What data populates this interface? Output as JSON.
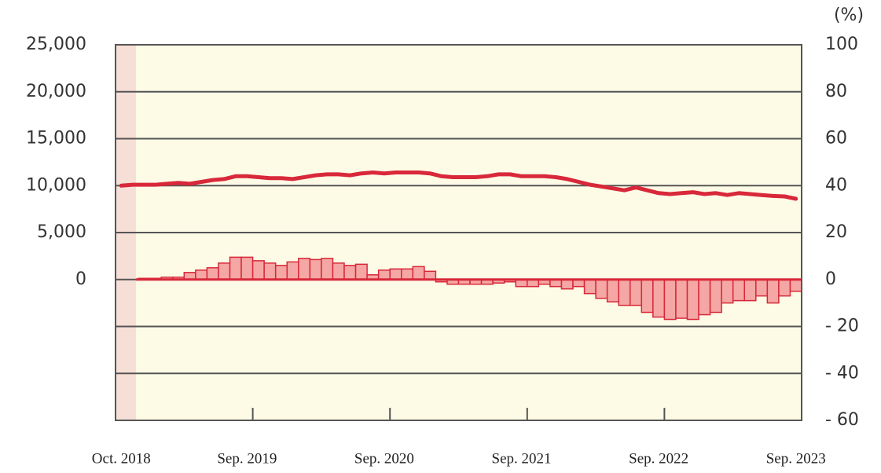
{
  "chart_data": {
    "type": "combo",
    "y2_label": "(%)",
    "categories": [
      "Oct. 2018",
      null,
      null,
      null,
      null,
      null,
      null,
      null,
      null,
      null,
      null,
      "Sep. 2019",
      null,
      null,
      null,
      null,
      null,
      null,
      null,
      null,
      null,
      null,
      null,
      "Sep. 2020",
      null,
      null,
      null,
      null,
      null,
      null,
      null,
      null,
      null,
      null,
      null,
      "Sep. 2021",
      null,
      null,
      null,
      null,
      null,
      null,
      null,
      null,
      null,
      null,
      null,
      "Sep. 2022",
      null,
      null,
      null,
      null,
      null,
      null,
      null,
      null,
      null,
      null,
      null,
      "Sep. 2023"
    ],
    "ylim": [
      -15000,
      25000
    ],
    "yticks": [
      0,
      {
        "value": 5000,
        "label": "5,000"
      },
      {
        "value": 10000,
        "label": "10,000"
      },
      {
        "value": 15000,
        "label": "15,000"
      },
      {
        "value": 20000,
        "label": "20,000"
      },
      {
        "value": 25000,
        "label": "25,000"
      }
    ],
    "y2lim": [
      -60,
      100
    ],
    "y2ticks": [
      {
        "value": -60,
        "label": "- 60"
      },
      {
        "value": -40,
        "label": "- 40"
      },
      {
        "value": -20,
        "label": "- 20"
      },
      0,
      20,
      40,
      60,
      80,
      100
    ],
    "grid": true,
    "series": [
      {
        "type": "bar",
        "axis": "y2",
        "color": "#f4a7a4",
        "values": [
          0,
          0,
          0.5,
          0.5,
          1,
          1,
          3,
          4,
          5,
          7,
          9.5,
          9.5,
          8,
          7,
          6,
          7.5,
          9,
          8.5,
          9,
          7,
          6,
          6.5,
          2,
          4,
          4.5,
          4.5,
          5.5,
          3.5,
          -1,
          -2,
          -2,
          -2,
          -2,
          -1.5,
          -1,
          -3,
          -3,
          -2,
          -3,
          -4,
          -3,
          -6,
          -8,
          -9.5,
          -11,
          -11,
          -14,
          -16,
          -17,
          -16.5,
          -17,
          -15,
          -14,
          -10,
          -9,
          -9,
          -7,
          -10,
          -7,
          -5
        ]
      },
      {
        "type": "line",
        "axis": "y",
        "color": "#d8283a",
        "values": [
          10000,
          10100,
          10100,
          10100,
          10200,
          10300,
          10200,
          10400,
          10600,
          10700,
          11000,
          11000,
          10900,
          10800,
          10800,
          10700,
          10900,
          11100,
          11200,
          11200,
          11100,
          11300,
          11400,
          11300,
          11400,
          11400,
          11400,
          11300,
          11000,
          10900,
          10900,
          10900,
          11000,
          11200,
          11200,
          11000,
          11000,
          11000,
          10900,
          10700,
          10400,
          10100,
          9900,
          9700,
          9500,
          9800,
          9500,
          9200,
          9100,
          9200,
          9300,
          9100,
          9200,
          9000,
          9200,
          9100,
          9000,
          8900,
          8850,
          8600
        ]
      }
    ]
  }
}
